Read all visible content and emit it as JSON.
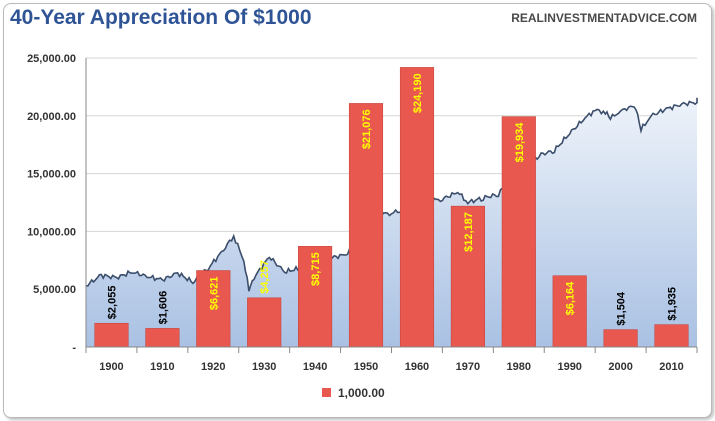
{
  "header": {
    "title": "40-Year Appreciation Of $1000",
    "source": "REALINVESTMENTADVICE.COM"
  },
  "chart_data": {
    "type": "bar",
    "title": "40-Year Appreciation Of $1000",
    "xlabel": "",
    "ylabel": "",
    "categories": [
      "1900",
      "1910",
      "1920",
      "1930",
      "1940",
      "1950",
      "1960",
      "1970",
      "1980",
      "1990",
      "2000",
      "2010"
    ],
    "series": [
      {
        "name": "1,000.00",
        "values": [
          2055,
          1606,
          6621,
          4257,
          8715,
          21076,
          24190,
          12187,
          19934,
          6164,
          1504,
          1935
        ],
        "labels": [
          "$2,055",
          "$1,606",
          "$6,621",
          "$4,257",
          "$8,715",
          "$21,076",
          "$24,190",
          "$12,187",
          "$19,934",
          "$6,164",
          "$1,504",
          "$1,935"
        ],
        "label_colors": [
          "#000000",
          "#000000",
          "#ffff00",
          "#ffff00",
          "#ffff00",
          "#ffff00",
          "#ffff00",
          "#ffff00",
          "#ffff00",
          "#ffff00",
          "#000000",
          "#000000"
        ],
        "color": "#e8584f"
      }
    ],
    "background_area": {
      "style": "area",
      "color": "#3b4e6b",
      "fill": "#a9c1e3",
      "x": [
        1900,
        1903,
        1906,
        1909,
        1912,
        1915,
        1918,
        1921,
        1924,
        1927,
        1929,
        1931,
        1932,
        1933,
        1936,
        1939,
        1942,
        1945,
        1948,
        1951,
        1954,
        1956,
        1958,
        1960,
        1962,
        1965,
        1968,
        1970,
        1973,
        1975,
        1978,
        1981,
        1983,
        1986,
        1989,
        1992,
        1995,
        1998,
        2000,
        2002,
        2003,
        2005,
        2007,
        2008,
        2009,
        2011,
        2014,
        2017,
        2020,
        2022
      ],
      "y": [
        5300,
        6200,
        6000,
        6500,
        6100,
        5800,
        6400,
        5600,
        6800,
        8400,
        9600,
        7500,
        5000,
        6000,
        7800,
        6500,
        6800,
        7000,
        7700,
        8000,
        9000,
        10500,
        11500,
        11600,
        11800,
        12500,
        12700,
        12800,
        13400,
        12500,
        12900,
        13200,
        14500,
        15500,
        16600,
        17000,
        18500,
        19800,
        20500,
        20300,
        19800,
        20400,
        20800,
        20600,
        18800,
        20000,
        20600,
        21000,
        21200,
        21500
      ]
    },
    "ylim": [
      0,
      25000
    ],
    "yticks": [
      0,
      5000,
      10000,
      15000,
      20000,
      25000
    ],
    "ytick_labels": [
      "-",
      "5,000.00",
      "10,000.00",
      "15,000.00",
      "20,000.00",
      "25,000.00"
    ],
    "grid": true,
    "legend": "bottom-center"
  }
}
